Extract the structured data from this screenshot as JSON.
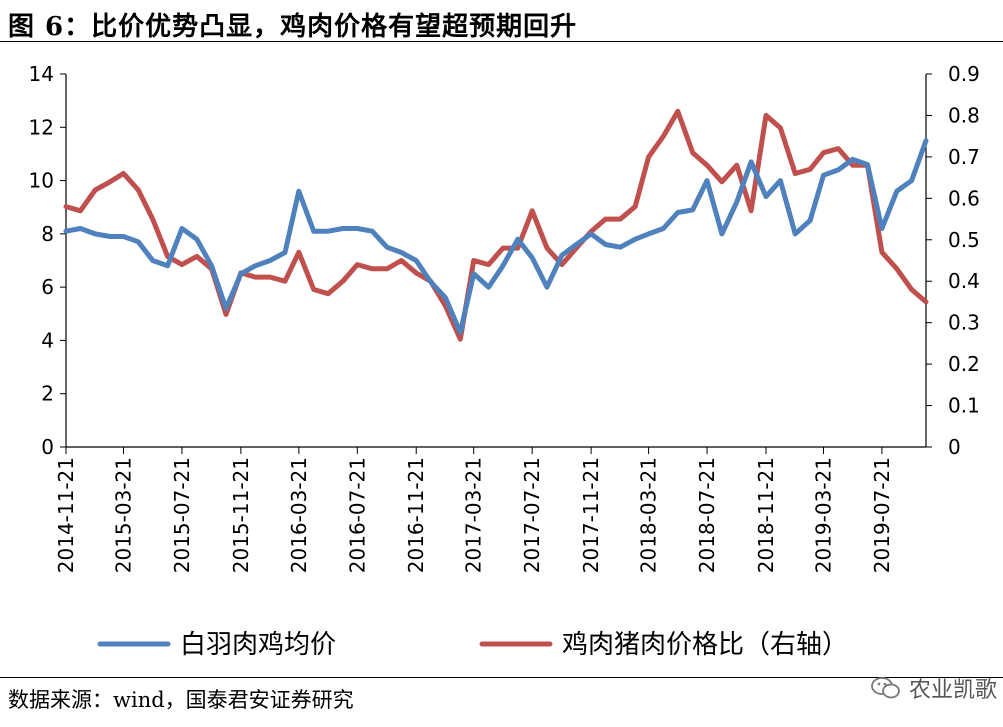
{
  "header": {
    "title": "图 6：比价优势凸显，鸡肉价格有望超预期回升"
  },
  "footer": {
    "source": "数据来源：wind，国泰君安证券研究",
    "watermark": "农业凯歌"
  },
  "chart_data": {
    "type": "line",
    "x_dates": [
      "2014-11-21",
      "2014-12-21",
      "2015-01-21",
      "2015-02-21",
      "2015-03-21",
      "2015-04-21",
      "2015-05-21",
      "2015-06-21",
      "2015-07-21",
      "2015-08-21",
      "2015-09-21",
      "2015-10-21",
      "2015-11-21",
      "2015-12-21",
      "2016-01-21",
      "2016-02-21",
      "2016-03-21",
      "2016-04-21",
      "2016-05-21",
      "2016-06-21",
      "2016-07-21",
      "2016-08-21",
      "2016-09-21",
      "2016-10-21",
      "2016-11-21",
      "2016-12-21",
      "2017-01-21",
      "2017-02-21",
      "2017-03-21",
      "2017-04-21",
      "2017-05-21",
      "2017-06-21",
      "2017-07-21",
      "2017-08-21",
      "2017-09-21",
      "2017-10-21",
      "2017-11-21",
      "2017-12-21",
      "2018-01-21",
      "2018-02-21",
      "2018-03-21",
      "2018-04-21",
      "2018-05-21",
      "2018-06-21",
      "2018-07-21",
      "2018-08-21",
      "2018-09-21",
      "2018-10-21",
      "2018-11-21",
      "2018-12-21",
      "2019-01-21",
      "2019-02-21",
      "2019-03-21",
      "2019-04-21",
      "2019-05-21",
      "2019-06-21",
      "2019-07-21",
      "2019-08-21",
      "2019-09-21",
      "2019-10-21"
    ],
    "x_tick_labels": [
      "2014-11-21",
      "2015-03-21",
      "2015-07-21",
      "2015-11-21",
      "2016-03-21",
      "2016-07-21",
      "2016-11-21",
      "2017-03-21",
      "2017-07-21",
      "2017-11-21",
      "2018-03-21",
      "2018-07-21",
      "2018-11-21",
      "2019-03-21",
      "2019-07-21"
    ],
    "series": [
      {
        "name": "白羽肉鸡均价",
        "axis": "left",
        "color": "#4F81BD",
        "values": [
          8.1,
          8.2,
          8.0,
          7.9,
          7.9,
          7.7,
          7.0,
          6.8,
          8.2,
          7.8,
          6.8,
          5.2,
          6.5,
          6.8,
          7.0,
          7.3,
          9.6,
          8.1,
          8.1,
          8.2,
          8.2,
          8.1,
          7.5,
          7.3,
          7.0,
          6.2,
          5.6,
          4.3,
          6.5,
          6.0,
          6.8,
          7.8,
          7.1,
          6.0,
          7.2,
          7.6,
          8.0,
          7.6,
          7.5,
          7.8,
          8.0,
          8.2,
          8.8,
          8.9,
          10.0,
          8.0,
          9.2,
          10.7,
          9.4,
          10.0,
          8.0,
          8.5,
          10.2,
          10.4,
          10.8,
          10.6,
          8.2,
          9.6,
          10.0,
          11.5
        ]
      },
      {
        "name": "鸡肉猪肉价格比（右轴）",
        "axis": "right",
        "color": "#C0504D",
        "values": [
          0.58,
          0.57,
          0.62,
          0.64,
          0.66,
          0.62,
          0.55,
          0.46,
          0.44,
          0.46,
          0.43,
          0.32,
          0.42,
          0.41,
          0.41,
          0.4,
          0.47,
          0.38,
          0.37,
          0.4,
          0.44,
          0.43,
          0.43,
          0.45,
          0.42,
          0.4,
          0.34,
          0.26,
          0.45,
          0.44,
          0.48,
          0.48,
          0.57,
          0.48,
          0.44,
          0.48,
          0.52,
          0.55,
          0.55,
          0.58,
          0.7,
          0.75,
          0.81,
          0.71,
          0.68,
          0.64,
          0.68,
          0.57,
          0.8,
          0.77,
          0.66,
          0.67,
          0.71,
          0.72,
          0.68,
          0.68,
          0.47,
          0.43,
          0.38,
          0.35
        ]
      }
    ],
    "left_axis": {
      "ylim": [
        0,
        14
      ],
      "ticks": [
        0,
        2,
        4,
        6,
        8,
        10,
        12,
        14
      ]
    },
    "right_axis": {
      "ylim": [
        0,
        0.9
      ],
      "ticks": [
        0,
        0.1,
        0.2,
        0.3,
        0.4,
        0.5,
        0.6,
        0.7,
        0.8,
        0.9
      ]
    },
    "grid": false,
    "legend_position": "bottom"
  }
}
